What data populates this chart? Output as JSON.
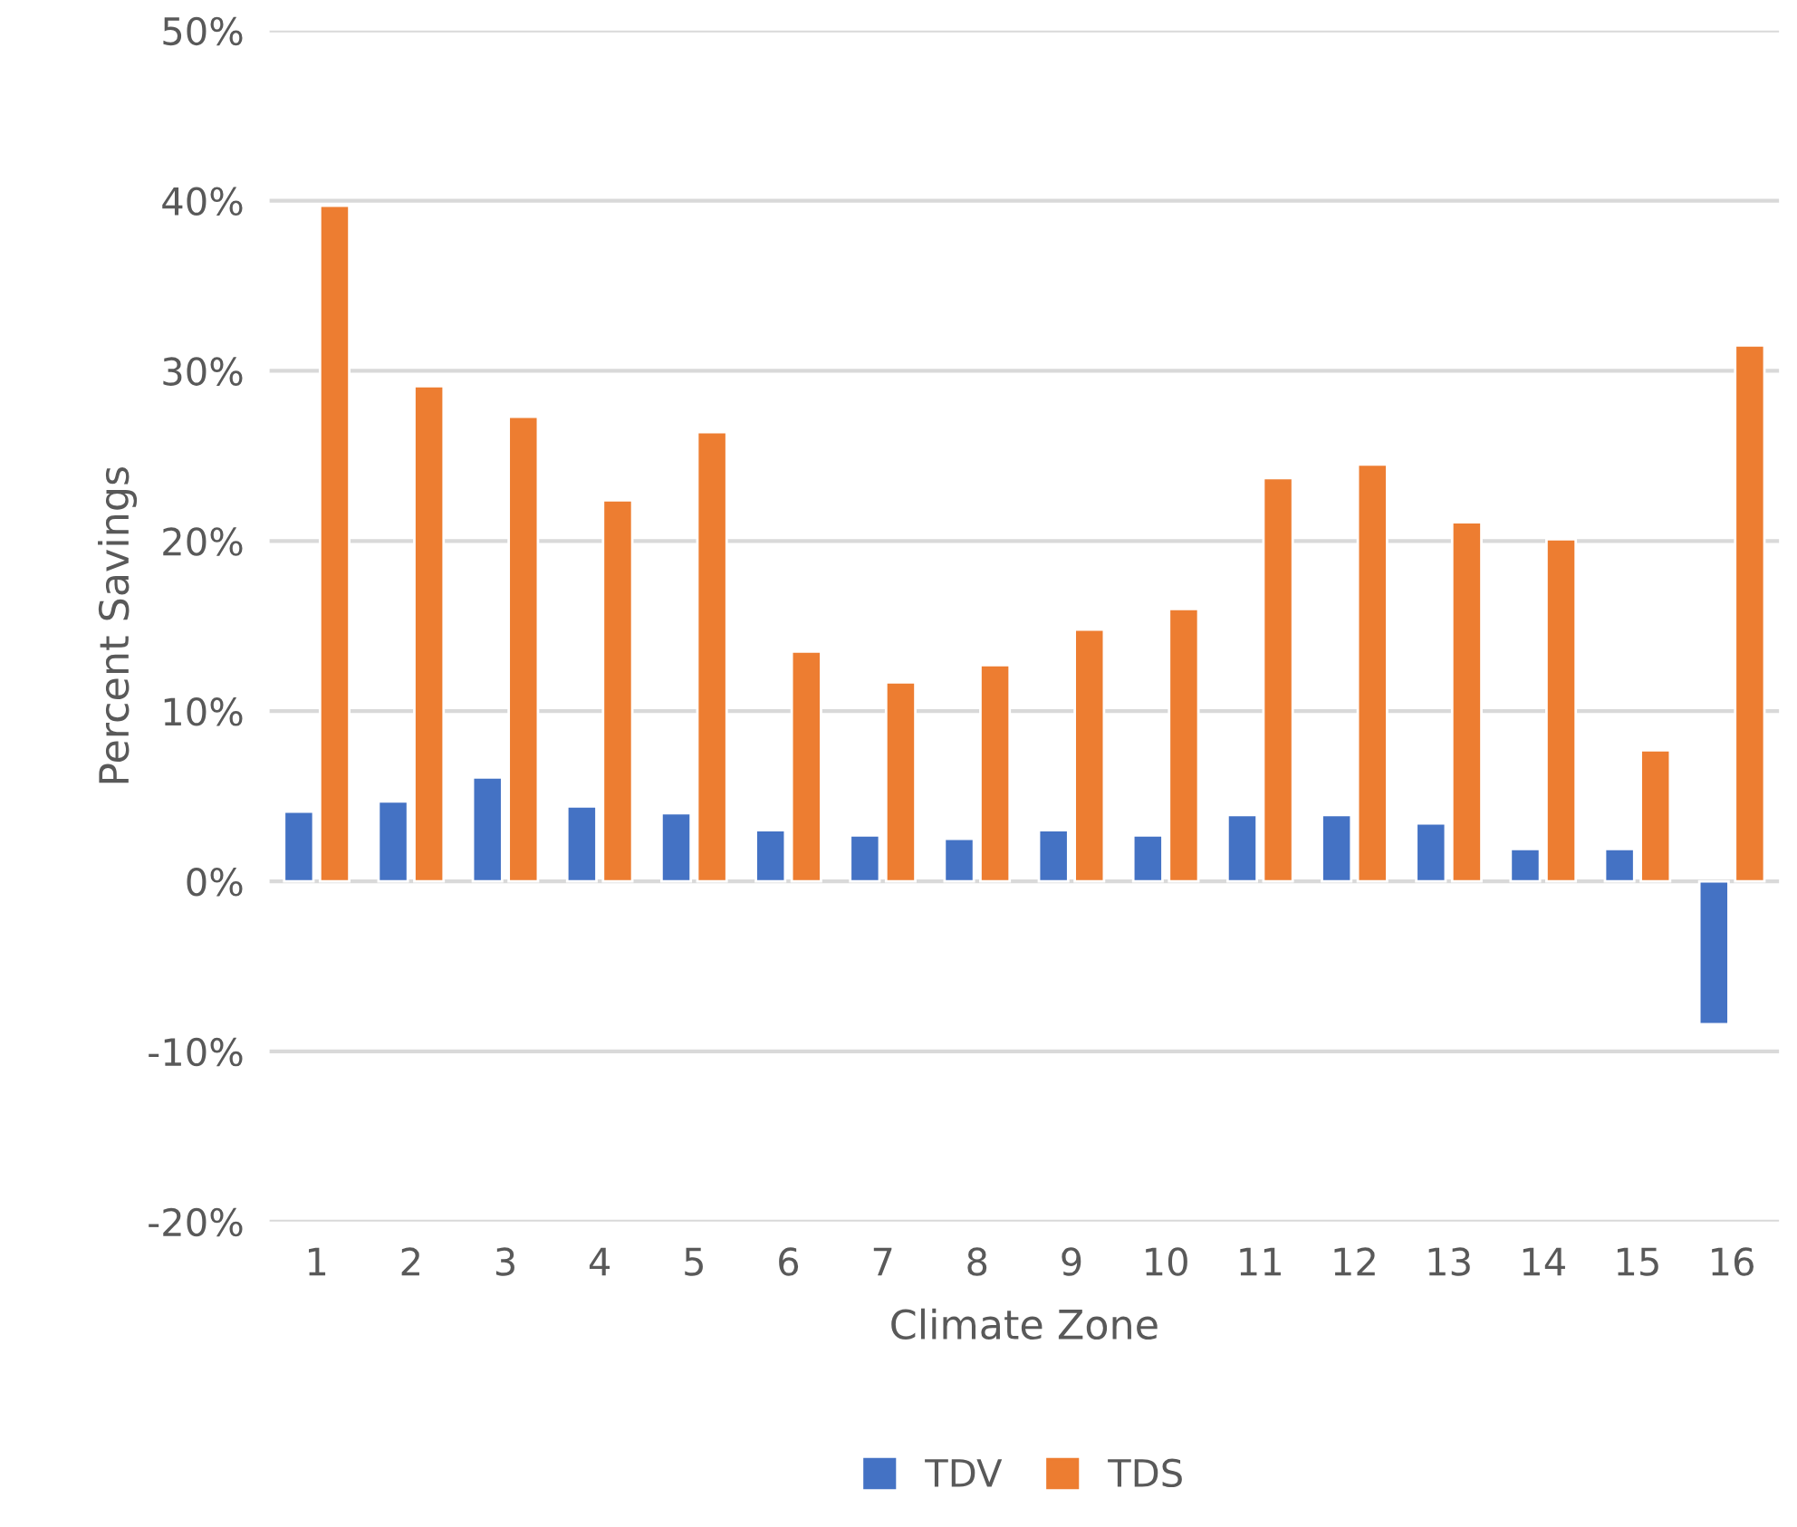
{
  "chart_data": {
    "type": "bar",
    "xlabel": "Climate Zone",
    "ylabel": "Percent Savings",
    "categories": [
      "1",
      "2",
      "3",
      "4",
      "5",
      "6",
      "7",
      "8",
      "9",
      "10",
      "11",
      "12",
      "13",
      "14",
      "15",
      "16"
    ],
    "series": [
      {
        "name": "TDV",
        "color": "#4472c4",
        "values": [
          4.1,
          4.7,
          6.1,
          4.4,
          4.0,
          3.0,
          2.7,
          2.5,
          3.0,
          2.7,
          3.9,
          3.9,
          3.4,
          1.9,
          1.9,
          -8.4
        ]
      },
      {
        "name": "TDS",
        "color": "#ed7d31",
        "values": [
          39.7,
          29.1,
          27.3,
          22.4,
          26.4,
          13.5,
          11.7,
          12.7,
          14.8,
          16.0,
          23.7,
          24.5,
          21.1,
          20.1,
          7.7,
          31.5
        ]
      }
    ],
    "ylim": [
      -20,
      50
    ],
    "yticks": [
      {
        "value": -20,
        "label": "-20%"
      },
      {
        "value": -10,
        "label": "-10%"
      },
      {
        "value": 0,
        "label": "0%"
      },
      {
        "value": 10,
        "label": "10%"
      },
      {
        "value": 20,
        "label": "20%"
      },
      {
        "value": 30,
        "label": "30%"
      },
      {
        "value": 40,
        "label": "40%"
      },
      {
        "value": 50,
        "label": "50%"
      }
    ],
    "grid": "y",
    "legend": "bottom"
  }
}
